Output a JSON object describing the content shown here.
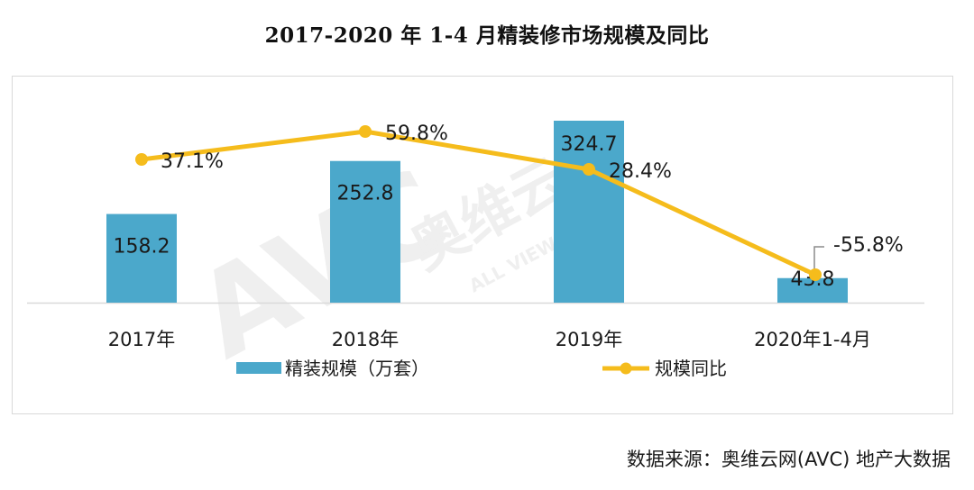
{
  "title": "2017-2020 年 1-4 月精装修市场规模及同比",
  "source": "数据来源：奥维云网(AVC) 地产大数据",
  "watermark": {
    "logo": "AVC",
    "cn": "奥维云网",
    "en": "ALL VIEW CLOUD"
  },
  "colors": {
    "bar": "#4BA8CB",
    "line": "#F5BC1C",
    "axis": "#d9d9d9",
    "border": "#d9d9d9"
  },
  "legend": {
    "bar_label": "精装规模（万套）",
    "line_label": "规模同比"
  },
  "chart_data": {
    "type": "bar",
    "title": "2017-2020 年 1-4 月精装修市场规模及同比",
    "categories": [
      "2017年",
      "2018年",
      "2019年",
      "2020年1-4月"
    ],
    "series": [
      {
        "name": "精装规模（万套）",
        "type": "bar",
        "values": [
          158.2,
          252.8,
          324.7,
          43.8
        ],
        "labels": [
          "158.2",
          "252.8",
          "324.7",
          "43.8"
        ]
      },
      {
        "name": "规模同比",
        "type": "line",
        "values": [
          37.1,
          59.8,
          28.4,
          -55.8
        ],
        "labels": [
          "37.1%",
          "59.8%",
          "28.4%",
          "-55.8%"
        ]
      }
    ],
    "xlabel": "",
    "ylabel": "",
    "grid": false,
    "legend_position": "bottom"
  }
}
